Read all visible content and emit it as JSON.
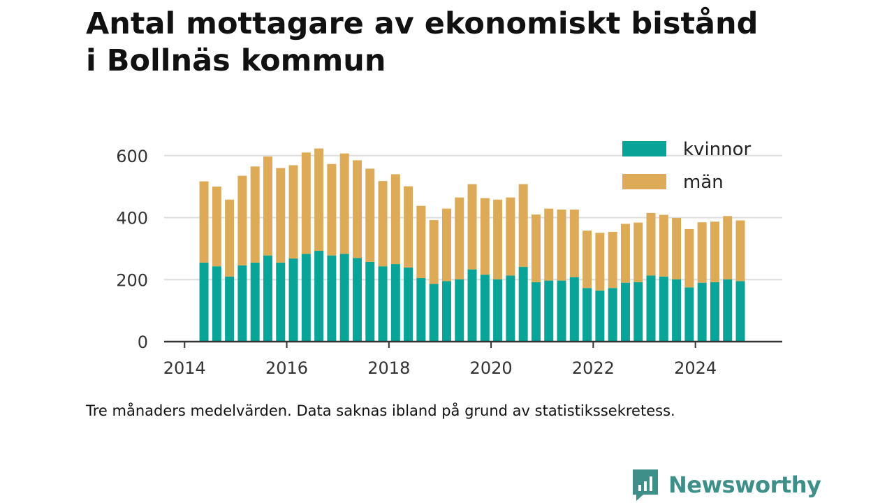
{
  "title_lines": [
    "Antal mottagare av ekonomiskt bistånd",
    "i Bollnäs kommun"
  ],
  "note": "Tre månaders medelvärden. Data saknas ibland på grund av statistikssekretess.",
  "brand": {
    "name": "Newsworthy",
    "icon": "newsworthy-logo-icon",
    "color": "#3e8f8a"
  },
  "colors": {
    "kvinnor": "#0aa398",
    "man": "#ddab57",
    "grid": "#dddddd",
    "axis": "#333333",
    "text": "#333333"
  },
  "chart_data": {
    "type": "bar",
    "stacked": true,
    "title": "Antal mottagare av ekonomiskt bistånd i Bollnäs kommun",
    "xlabel": "",
    "ylabel": "",
    "xlim": [
      2013.6,
      2025.7
    ],
    "ylim": [
      0,
      640
    ],
    "yticks": [
      0,
      200,
      400,
      600
    ],
    "xticks": [
      2014,
      2016,
      2018,
      2020,
      2022,
      2024
    ],
    "grid": "horizontal",
    "legend": "top-right",
    "x": [
      2014.38,
      2014.63,
      2014.88,
      2015.13,
      2015.38,
      2015.63,
      2015.88,
      2016.13,
      2016.38,
      2016.63,
      2016.88,
      2017.13,
      2017.38,
      2017.63,
      2017.88,
      2018.13,
      2018.38,
      2018.63,
      2018.88,
      2019.13,
      2019.38,
      2019.63,
      2019.88,
      2020.13,
      2020.38,
      2020.63,
      2020.88,
      2021.13,
      2021.38,
      2021.63,
      2021.88,
      2022.13,
      2022.38,
      2022.63,
      2022.88,
      2023.13,
      2023.38,
      2023.63,
      2023.88,
      2024.13,
      2024.38,
      2024.63,
      2024.88
    ],
    "series": [
      {
        "name": "kvinnor",
        "color": "#0aa398",
        "values": [
          255,
          243,
          210,
          246,
          255,
          278,
          255,
          268,
          283,
          293,
          278,
          283,
          270,
          257,
          243,
          250,
          239,
          205,
          186,
          195,
          201,
          233,
          216,
          201,
          213,
          241,
          192,
          197,
          197,
          208,
          173,
          165,
          173,
          190,
          192,
          213,
          210,
          201,
          175,
          190,
          192,
          201,
          195
        ]
      },
      {
        "name": "män",
        "color": "#ddab57",
        "values": [
          262,
          257,
          248,
          289,
          310,
          319,
          305,
          301,
          327,
          330,
          295,
          324,
          315,
          301,
          275,
          290,
          262,
          233,
          206,
          234,
          264,
          275,
          247,
          257,
          252,
          267,
          218,
          232,
          229,
          218,
          185,
          186,
          181,
          190,
          192,
          202,
          199,
          198,
          188,
          195,
          195,
          204,
          196
        ]
      }
    ]
  }
}
